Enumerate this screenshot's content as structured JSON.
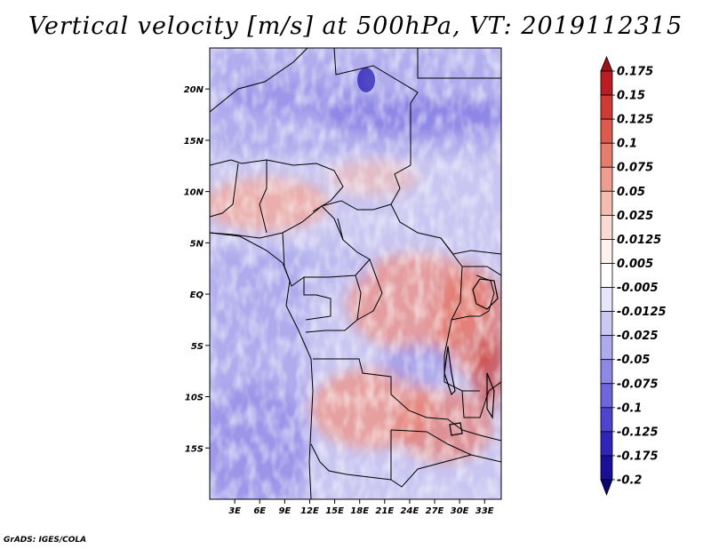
{
  "title": "Vertical velocity [m/s] at 500hPa, VT: 2019112315",
  "credit": "GrADS: IGES/COLA",
  "map": {
    "variable": "Vertical velocity",
    "units": "m/s",
    "level": "500hPa",
    "valid_time": "2019112315",
    "lon_range": [
      0,
      35
    ],
    "lat_range": [
      -20,
      24
    ],
    "lat_ticks": [
      {
        "value": 20,
        "label": "20N"
      },
      {
        "value": 15,
        "label": "15N"
      },
      {
        "value": 10,
        "label": "10N"
      },
      {
        "value": 5,
        "label": "5N"
      },
      {
        "value": 0,
        "label": "EQ"
      },
      {
        "value": -5,
        "label": "5S"
      },
      {
        "value": -10,
        "label": "10S"
      },
      {
        "value": -15,
        "label": "15S"
      }
    ],
    "lon_ticks": [
      {
        "value": 3,
        "label": "3E"
      },
      {
        "value": 6,
        "label": "6E"
      },
      {
        "value": 9,
        "label": "9E"
      },
      {
        "value": 12,
        "label": "12E"
      },
      {
        "value": 15,
        "label": "15E"
      },
      {
        "value": 18,
        "label": "18E"
      },
      {
        "value": 21,
        "label": "21E"
      },
      {
        "value": 24,
        "label": "24E"
      },
      {
        "value": 27,
        "label": "27E"
      },
      {
        "value": 30,
        "label": "30E"
      },
      {
        "value": 33,
        "label": "33E"
      }
    ]
  },
  "colorbar": {
    "labels": [
      "0.175",
      "0.15",
      "0.125",
      "0.1",
      "0.075",
      "0.05",
      "0.025",
      "0.0125",
      "0.005",
      "-0.005",
      "-0.0125",
      "-0.025",
      "-0.05",
      "-0.075",
      "-0.1",
      "-0.125",
      "-0.175",
      "-0.2"
    ],
    "colors": [
      "#a01219",
      "#bb1d25",
      "#cf3a35",
      "#dc5a4e",
      "#e67c6d",
      "#ee9d8f",
      "#f5bdb1",
      "#fbdad2",
      "#fff1ec",
      "#ffffff",
      "#e7e5fb",
      "#cbc8f4",
      "#aeaaee",
      "#8f89e6",
      "#6e66dc",
      "#4d44cf",
      "#2f25b8",
      "#1a0f96",
      "#0c0675"
    ]
  },
  "colors": {
    "positive": "#d9505a",
    "negative": "#6a6ae0",
    "background": "#ffffff"
  }
}
